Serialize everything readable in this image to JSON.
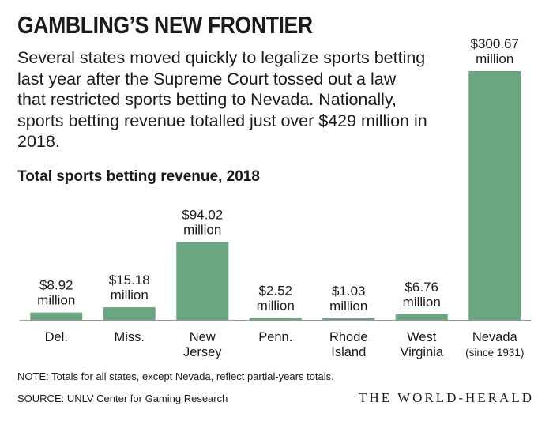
{
  "header": {
    "title": "GAMBLING’S NEW FRONTIER",
    "subtitle": "Several states moved quickly to legalize sports betting last year after the Supreme Court tossed out a law that restricted sports betting to Nevada. Nationally, sports betting revenue totalled just over $429 million in 2018."
  },
  "chart_data": {
    "type": "bar",
    "title": "Total sports betting revenue, 2018",
    "unit": "million",
    "categories": [
      [
        "Del."
      ],
      [
        "Miss."
      ],
      [
        "New",
        "Jersey"
      ],
      [
        "Penn."
      ],
      [
        "Rhode",
        "Island"
      ],
      [
        "West",
        "Virginia"
      ],
      [
        "Nevada",
        "(since 1931)"
      ]
    ],
    "values": [
      8.92,
      15.18,
      94.02,
      2.52,
      1.03,
      6.76,
      300.67
    ],
    "value_labels": [
      "$8.92",
      "$15.18",
      "$94.02",
      "$2.52",
      "$1.03",
      "$6.76",
      "$300.67"
    ],
    "bar_color": "#6aa67f",
    "axis_color": "#999999"
  },
  "footer": {
    "note": "NOTE: Totals for all states, except Nevada, reflect partial-years totals.",
    "source": "SOURCE: UNLV Center for Gaming Research",
    "brand": "THE WORLD-HERALD"
  }
}
